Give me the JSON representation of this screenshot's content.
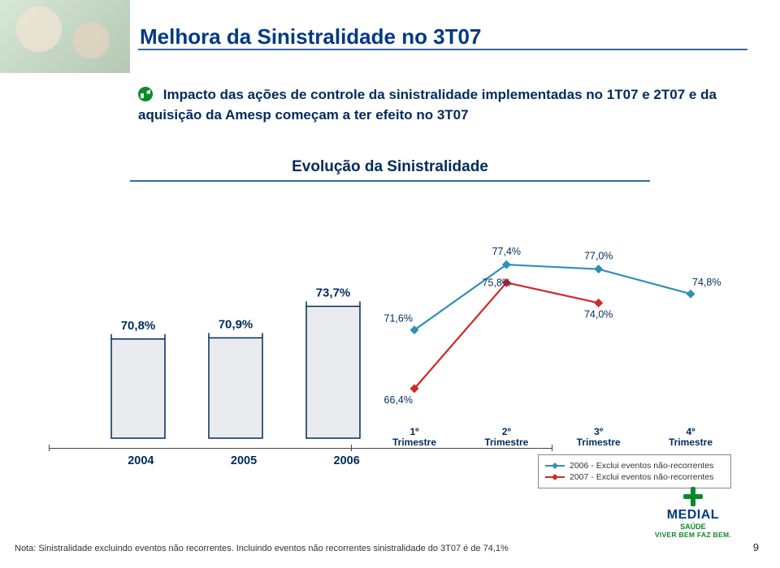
{
  "title": "Melhora da Sinistralidade no 3T07",
  "bullet": "Impacto das ações de controle da sinistralidade implementadas no 1T07 e 2T07 e da aquisição da Amesp começam a ter efeito no 3T07",
  "chart_title": "Evolução da Sinistralidade",
  "bars": {
    "type": "bar",
    "categories": [
      "2004",
      "2005",
      "2006"
    ],
    "values": [
      70.8,
      70.9,
      73.7
    ],
    "labels": [
      "70,8%",
      "70,9%",
      "73,7%"
    ],
    "fill": "#e9ebee",
    "border": "#002b5c",
    "bar_width_ratio": 0.55,
    "ymin": 62,
    "ymax": 80,
    "label_color": "#002b5c",
    "label_fontsize": 15
  },
  "lines": {
    "type": "line",
    "x_labels": [
      "1º\nTrimestre",
      "2º\nTrimestre",
      "3º\nTrimestre",
      "4º\nTrimestre"
    ],
    "series": [
      {
        "name": "2006 - Exclui eventos não-recorrentes",
        "color": "#2f8fb7",
        "values": [
          71.6,
          77.4,
          77.0,
          74.8
        ],
        "labels": [
          "71,6%",
          "77,4%",
          "77,0%",
          "74,8%"
        ],
        "marker": "diamond"
      },
      {
        "name": "2007 - Exclui eventos não-recorrentes",
        "color": "#d22828",
        "values": [
          66.4,
          75.8,
          74.0,
          null
        ],
        "labels": [
          "66,4%",
          "75,8%",
          "74,0%",
          ""
        ],
        "marker": "diamond"
      }
    ],
    "ymin": 62,
    "ymax": 80,
    "line_width": 2.2,
    "marker_size": 5.5,
    "label_fontsize": 12.5,
    "label_color": "#002b5c"
  },
  "legend": {
    "line_length": 24,
    "items": [
      {
        "color": "#2f8fb7",
        "text": "2006 - Exclui eventos não-recorrentes"
      },
      {
        "color": "#d22828",
        "text": "2007 - Exclui eventos não-recorrentes"
      }
    ]
  },
  "note": "Nota: Sinistralidade excluindo eventos não recorrentes. Incluindo eventos não recorrentes sinistralidade do 3T07 é de 74,1%",
  "page_num": "9",
  "logo": {
    "name": "MEDIAL",
    "sub": "SAÚDE",
    "tag": "VIVER BEM FAZ BEM."
  },
  "colors": {
    "title": "#003a82",
    "text": "#002b5c",
    "rule": "#356aa0"
  }
}
